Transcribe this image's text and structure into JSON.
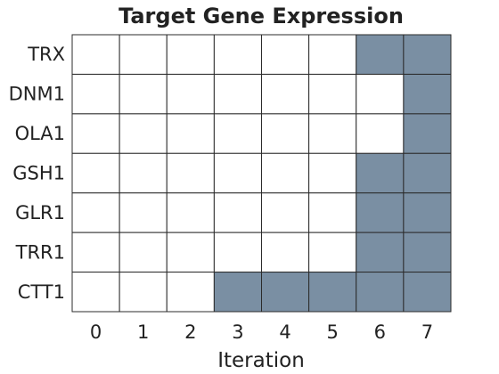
{
  "chart_data": {
    "type": "heatmap",
    "title": "Target Gene Expression",
    "xlabel": "Iteration",
    "ylabel": "",
    "x": [
      "0",
      "1",
      "2",
      "3",
      "4",
      "5",
      "6",
      "7"
    ],
    "y": [
      "TRX",
      "DNM1",
      "OLA1",
      "GSH1",
      "GLR1",
      "TRR1",
      "CTT1"
    ],
    "values": [
      [
        0,
        0,
        0,
        0,
        0,
        0,
        1,
        1
      ],
      [
        0,
        0,
        0,
        0,
        0,
        0,
        0,
        1
      ],
      [
        0,
        0,
        0,
        0,
        0,
        0,
        0,
        1
      ],
      [
        0,
        0,
        0,
        0,
        0,
        0,
        1,
        1
      ],
      [
        0,
        0,
        0,
        0,
        0,
        0,
        1,
        1
      ],
      [
        0,
        0,
        0,
        0,
        0,
        0,
        1,
        1
      ],
      [
        0,
        0,
        0,
        1,
        1,
        1,
        1,
        1
      ]
    ],
    "colors": {
      "on": "#7a8fa3",
      "off": "#ffffff",
      "grid": "#2b2b2b"
    },
    "legend": "none"
  }
}
